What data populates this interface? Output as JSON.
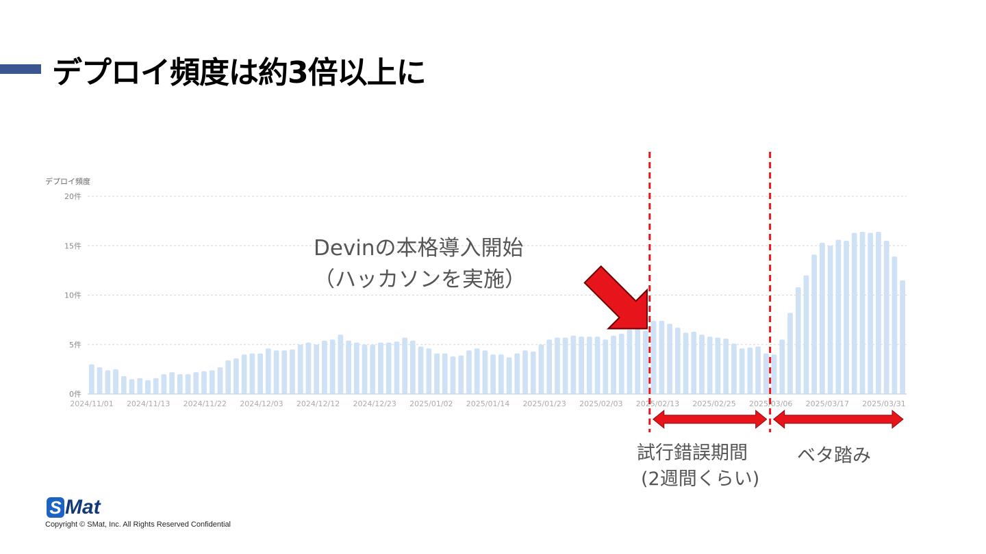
{
  "slide": {
    "title": "デプロイ頻度は約3倍以上に",
    "annotation": {
      "line1": "Devinの本格導入開始",
      "line2": "（ハッカソンを実施）"
    },
    "periods": {
      "trial_line1": "試行錯誤期間",
      "trial_line2": "(2週間くらい)",
      "beta": "ベタ踏み"
    },
    "footer": {
      "logo_s": "S",
      "logo_rest": "Mat",
      "copyright": "Copyright © SMat, Inc. All Rights Reserved Confidential"
    }
  },
  "colors": {
    "bar": "#cfe1f4",
    "marker": "#e8141b",
    "axis_text": "#aaaaaa",
    "title_accent": "#3a5590"
  },
  "chart_data": {
    "type": "bar",
    "ylabel": "デプロイ頻度",
    "ylim": [
      0,
      20
    ],
    "yticks": [
      {
        "value": 0,
        "label": "0件"
      },
      {
        "value": 5,
        "label": "5件"
      },
      {
        "value": 10,
        "label": "10件"
      },
      {
        "value": 15,
        "label": "15件"
      },
      {
        "value": 20,
        "label": "20件"
      }
    ],
    "grid": true,
    "xtick_labels": [
      "2024/11/01",
      "2024/11/13",
      "2024/11/22",
      "2024/12/03",
      "2024/12/12",
      "2024/12/23",
      "2025/01/02",
      "2025/01/14",
      "2025/01/23",
      "2025/02/03",
      "2025/02/13",
      "2025/02/25",
      "2025/03/06",
      "2025/03/17",
      "2025/03/31"
    ],
    "values": [
      3.0,
      2.7,
      2.4,
      2.5,
      1.8,
      1.5,
      1.6,
      1.4,
      1.6,
      2.0,
      2.2,
      2.0,
      2.0,
      2.2,
      2.3,
      2.4,
      2.7,
      3.4,
      3.6,
      4.0,
      4.1,
      4.1,
      4.6,
      4.4,
      4.4,
      4.5,
      5.0,
      5.2,
      5.0,
      5.4,
      5.5,
      6.0,
      5.4,
      5.2,
      5.0,
      5.0,
      5.2,
      5.2,
      5.3,
      5.7,
      5.4,
      4.8,
      4.6,
      4.1,
      4.1,
      3.8,
      3.9,
      4.4,
      4.6,
      4.4,
      4.0,
      4.0,
      3.7,
      4.1,
      4.4,
      4.3,
      5.0,
      5.5,
      5.7,
      5.7,
      5.9,
      5.8,
      5.8,
      5.8,
      5.5,
      5.9,
      6.1,
      6.5,
      6.6,
      6.4,
      7.4,
      7.4,
      7.1,
      6.7,
      6.2,
      6.3,
      6.0,
      5.8,
      5.7,
      5.6,
      5.1,
      4.6,
      4.7,
      4.8,
      4.1,
      4.0,
      5.5,
      8.2,
      10.8,
      12.0,
      14.1,
      15.3,
      15.0,
      15.6,
      15.5,
      16.3,
      16.4,
      16.3,
      16.4,
      15.5,
      13.9,
      11.5
    ],
    "markers": [
      {
        "kind": "arrow",
        "points_to_bar": 69
      },
      {
        "kind": "vline",
        "after_bar": 69
      },
      {
        "kind": "vline",
        "after_bar": 84
      },
      {
        "kind": "range",
        "from_bar": 69,
        "to_bar": 84
      },
      {
        "kind": "range",
        "from_bar": 84,
        "to_bar": 101
      }
    ]
  }
}
